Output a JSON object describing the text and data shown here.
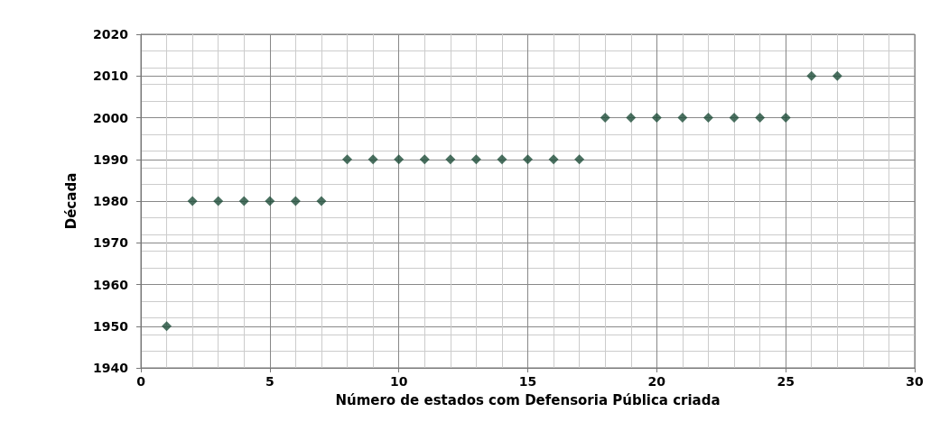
{
  "chart_data": {
    "type": "scatter",
    "xlabel": "Número de estados com Defensoria Pública criada",
    "ylabel": "Década",
    "x": [
      1,
      2,
      3,
      4,
      5,
      6,
      7,
      8,
      9,
      10,
      11,
      12,
      13,
      14,
      15,
      16,
      17,
      18,
      19,
      20,
      21,
      22,
      23,
      24,
      25,
      26,
      27
    ],
    "series": [
      {
        "color": "#1e4d3a",
        "values": [
          1950,
          1980,
          1980,
          1980,
          1980,
          1980,
          1980,
          1990,
          1990,
          1990,
          1990,
          1990,
          1990,
          1990,
          1990,
          1990,
          1990,
          2000,
          2000,
          2000,
          2000,
          2000,
          2000,
          2000,
          2000,
          2010,
          2010
        ]
      }
    ],
    "xlim": [
      0,
      30
    ],
    "xticks": [
      0,
      5,
      10,
      15,
      20,
      25,
      30
    ],
    "ylim": [
      1940,
      2020
    ],
    "yticks": [
      1940,
      1950,
      1960,
      1970,
      1980,
      1990,
      2000,
      2010,
      2020
    ],
    "grid": true,
    "marker": "diamond",
    "legend": false
  }
}
